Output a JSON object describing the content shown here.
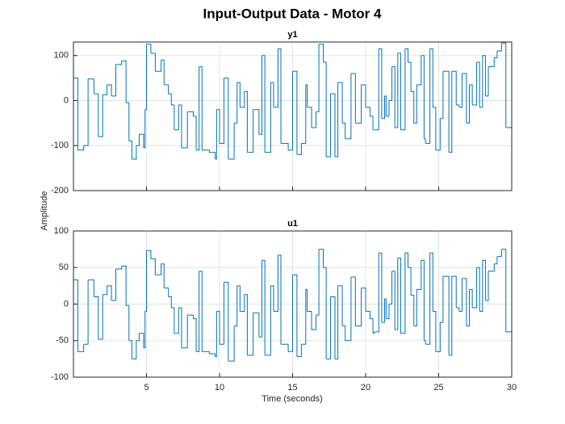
{
  "title": "Input-Output Data - Motor 4",
  "ylabel": "Amplitude",
  "xlabel": "Time (seconds)",
  "chart_data": [
    {
      "type": "line",
      "title": "y1",
      "drawstyle": "steps-post",
      "color": "#0072bd",
      "grid": true,
      "x": [
        0,
        0.3,
        0.7,
        1.0,
        1.4,
        1.7,
        2.0,
        2.3,
        2.6,
        2.9,
        3.3,
        3.6,
        3.8,
        4.0,
        4.3,
        4.5,
        4.8,
        4.9,
        5.0,
        5.3,
        5.6,
        6.0,
        6.2,
        6.5,
        6.7,
        6.9,
        7.2,
        7.4,
        7.8,
        8.2,
        8.4,
        8.6,
        8.8,
        9.3,
        9.7,
        9.8,
        10.0,
        10.3,
        10.6,
        11.0,
        11.2,
        11.4,
        11.7,
        11.9,
        12.3,
        12.7,
        12.9,
        13.1,
        13.5,
        13.7,
        14.0,
        14.2,
        14.7,
        15.0,
        15.3,
        15.6,
        15.9,
        16.0,
        16.3,
        16.6,
        16.8,
        17.1,
        17.3,
        17.6,
        17.9,
        18.1,
        18.4,
        18.6,
        19.0,
        19.3,
        19.7,
        20.0,
        20.3,
        20.5,
        20.6,
        20.9,
        21.1,
        21.3,
        21.4,
        21.6,
        21.8,
        22.0,
        22.2,
        22.4,
        22.7,
        22.9,
        23.1,
        23.3,
        23.5,
        23.8,
        24.0,
        24.1,
        24.4,
        24.6,
        24.8,
        25.1,
        25.3,
        25.7,
        25.9,
        26.2,
        26.4,
        26.6,
        26.9,
        27.1,
        27.3,
        27.6,
        27.8,
        28.0,
        28.2,
        28.4,
        28.8,
        29.0,
        29.3,
        29.6,
        30
      ],
      "values": [
        50,
        -110,
        -100,
        48,
        15,
        -80,
        13,
        35,
        10,
        80,
        88,
        -5,
        -90,
        -130,
        -100,
        -75,
        -105,
        -20,
        125,
        105,
        65,
        90,
        35,
        15,
        -10,
        -65,
        -10,
        -105,
        -25,
        -35,
        -110,
        75,
        -110,
        -115,
        -130,
        -20,
        -95,
        50,
        -130,
        -50,
        40,
        -15,
        20,
        -115,
        -20,
        -75,
        100,
        -115,
        40,
        -15,
        115,
        -95,
        -110,
        65,
        -120,
        -95,
        35,
        -15,
        -60,
        -25,
        125,
        85,
        -125,
        15,
        -125,
        40,
        -50,
        -85,
        60,
        -50,
        35,
        -15,
        -35,
        -65,
        -65,
        115,
        -40,
        10,
        -35,
        0,
        75,
        -60,
        105,
        -65,
        115,
        85,
        20,
        -50,
        35,
        100,
        -85,
        -95,
        115,
        -15,
        -110,
        -40,
        65,
        -115,
        65,
        -10,
        -15,
        60,
        -50,
        35,
        -10,
        85,
        -15,
        100,
        10,
        75,
        95,
        110,
        128,
        -60,
        -60
      ],
      "xlim": [
        0,
        30
      ],
      "xticks": [
        5,
        10,
        15,
        20,
        25,
        30
      ],
      "ylim": [
        -200,
        130
      ],
      "yticks": [
        -200,
        -100,
        0,
        100
      ]
    },
    {
      "type": "line",
      "title": "u1",
      "drawstyle": "steps-post",
      "color": "#0072bd",
      "grid": true,
      "x": [
        0,
        0.3,
        0.7,
        1.0,
        1.4,
        1.7,
        2.0,
        2.3,
        2.6,
        2.9,
        3.3,
        3.6,
        3.8,
        4.0,
        4.3,
        4.5,
        4.8,
        4.9,
        5.0,
        5.3,
        5.6,
        6.0,
        6.2,
        6.5,
        6.7,
        6.9,
        7.2,
        7.4,
        7.8,
        8.2,
        8.4,
        8.6,
        8.8,
        9.3,
        9.7,
        9.8,
        10.0,
        10.3,
        10.6,
        11.0,
        11.2,
        11.4,
        11.7,
        11.9,
        12.3,
        12.7,
        12.9,
        13.1,
        13.5,
        13.7,
        14.0,
        14.2,
        14.7,
        15.0,
        15.3,
        15.6,
        15.9,
        16.0,
        16.3,
        16.6,
        16.8,
        17.1,
        17.3,
        17.6,
        17.9,
        18.1,
        18.4,
        18.6,
        19.0,
        19.3,
        19.7,
        20.0,
        20.3,
        20.5,
        20.6,
        20.9,
        21.1,
        21.3,
        21.4,
        21.6,
        21.8,
        22.0,
        22.2,
        22.4,
        22.7,
        22.9,
        23.1,
        23.3,
        23.5,
        23.8,
        24.0,
        24.1,
        24.4,
        24.6,
        24.8,
        25.1,
        25.3,
        25.7,
        25.9,
        26.2,
        26.4,
        26.6,
        26.9,
        27.1,
        27.3,
        27.6,
        27.8,
        28.0,
        28.2,
        28.4,
        28.8,
        29.0,
        29.3,
        29.6,
        30
      ],
      "values": [
        33,
        -65,
        -55,
        33,
        10,
        -48,
        13,
        25,
        5,
        48,
        52,
        -2,
        -50,
        -75,
        -50,
        -40,
        -60,
        -10,
        73,
        62,
        40,
        55,
        22,
        10,
        -5,
        -40,
        -5,
        -60,
        -15,
        -20,
        -65,
        45,
        -65,
        -68,
        -72,
        -10,
        -55,
        30,
        -78,
        -30,
        25,
        -10,
        13,
        -70,
        -12,
        -45,
        60,
        -70,
        25,
        -10,
        67,
        -55,
        -65,
        40,
        -72,
        -55,
        20,
        -10,
        -35,
        -15,
        75,
        50,
        -75,
        10,
        -75,
        25,
        -30,
        -50,
        37,
        -30,
        22,
        -10,
        -20,
        -40,
        -38,
        70,
        -25,
        7,
        -20,
        0,
        45,
        -35,
        63,
        -40,
        70,
        50,
        12,
        -30,
        20,
        60,
        -50,
        -55,
        70,
        -10,
        -65,
        -25,
        38,
        -70,
        38,
        -5,
        -10,
        35,
        -30,
        20,
        -5,
        50,
        -10,
        60,
        5,
        45,
        55,
        65,
        75,
        -38,
        -38
      ],
      "xlim": [
        0,
        30
      ],
      "xticks": [
        5,
        10,
        15,
        20,
        25,
        30
      ],
      "ylim": [
        -100,
        100
      ],
      "yticks": [
        -100,
        -50,
        0,
        50,
        100
      ]
    }
  ]
}
